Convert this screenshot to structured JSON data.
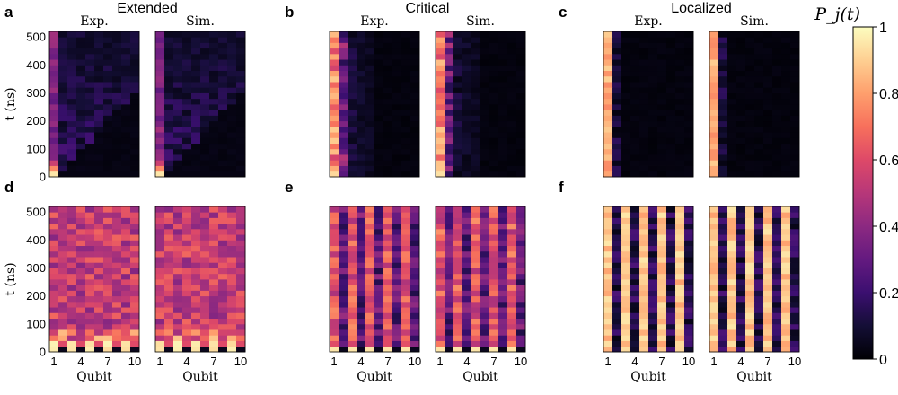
{
  "figure": {
    "colormap": [
      "#000004",
      "#140e36",
      "#3b0f70",
      "#641a80",
      "#8c2981",
      "#b73779",
      "#de4968",
      "#f7705c",
      "#fe9f6d",
      "#fecf92",
      "#fcfdbf"
    ],
    "panels": [
      {
        "letter": "a",
        "title": "Extended",
        "regime": "extended",
        "row": 0
      },
      {
        "letter": "b",
        "title": "Critical",
        "regime": "critical",
        "row": 0
      },
      {
        "letter": "c",
        "title": "Localized",
        "regime": "localized",
        "row": 0
      },
      {
        "letter": "d",
        "title": "",
        "regime": "extended",
        "row": 1
      },
      {
        "letter": "e",
        "title": "",
        "regime": "critical",
        "row": 1
      },
      {
        "letter": "f",
        "title": "",
        "regime": "localized",
        "row": 1
      }
    ],
    "subplot_labels": [
      "Exp.",
      "Sim."
    ],
    "colorbar": {
      "label": "P_j(t)",
      "min": 0,
      "max": 1,
      "ticks": [
        "0",
        "0.2",
        "0.4",
        "0.6",
        "0.8",
        "1"
      ]
    }
  },
  "chart_data": {
    "type": "heatmap",
    "x": {
      "label": "Qubit",
      "values": [
        1,
        2,
        3,
        4,
        5,
        6,
        7,
        8,
        9,
        10
      ],
      "tick_labels": [
        "1",
        "4",
        "7",
        "10"
      ]
    },
    "y": {
      "label": "t (ns)",
      "range": [
        0,
        520
      ],
      "tick_labels": [
        "0",
        "100",
        "200",
        "300",
        "400",
        "500"
      ]
    },
    "z": {
      "label": "P_j(t)",
      "range": [
        0,
        1
      ]
    },
    "rows": 26,
    "panels": [
      "a",
      "b",
      "c",
      "d",
      "e",
      "f"
    ]
  }
}
